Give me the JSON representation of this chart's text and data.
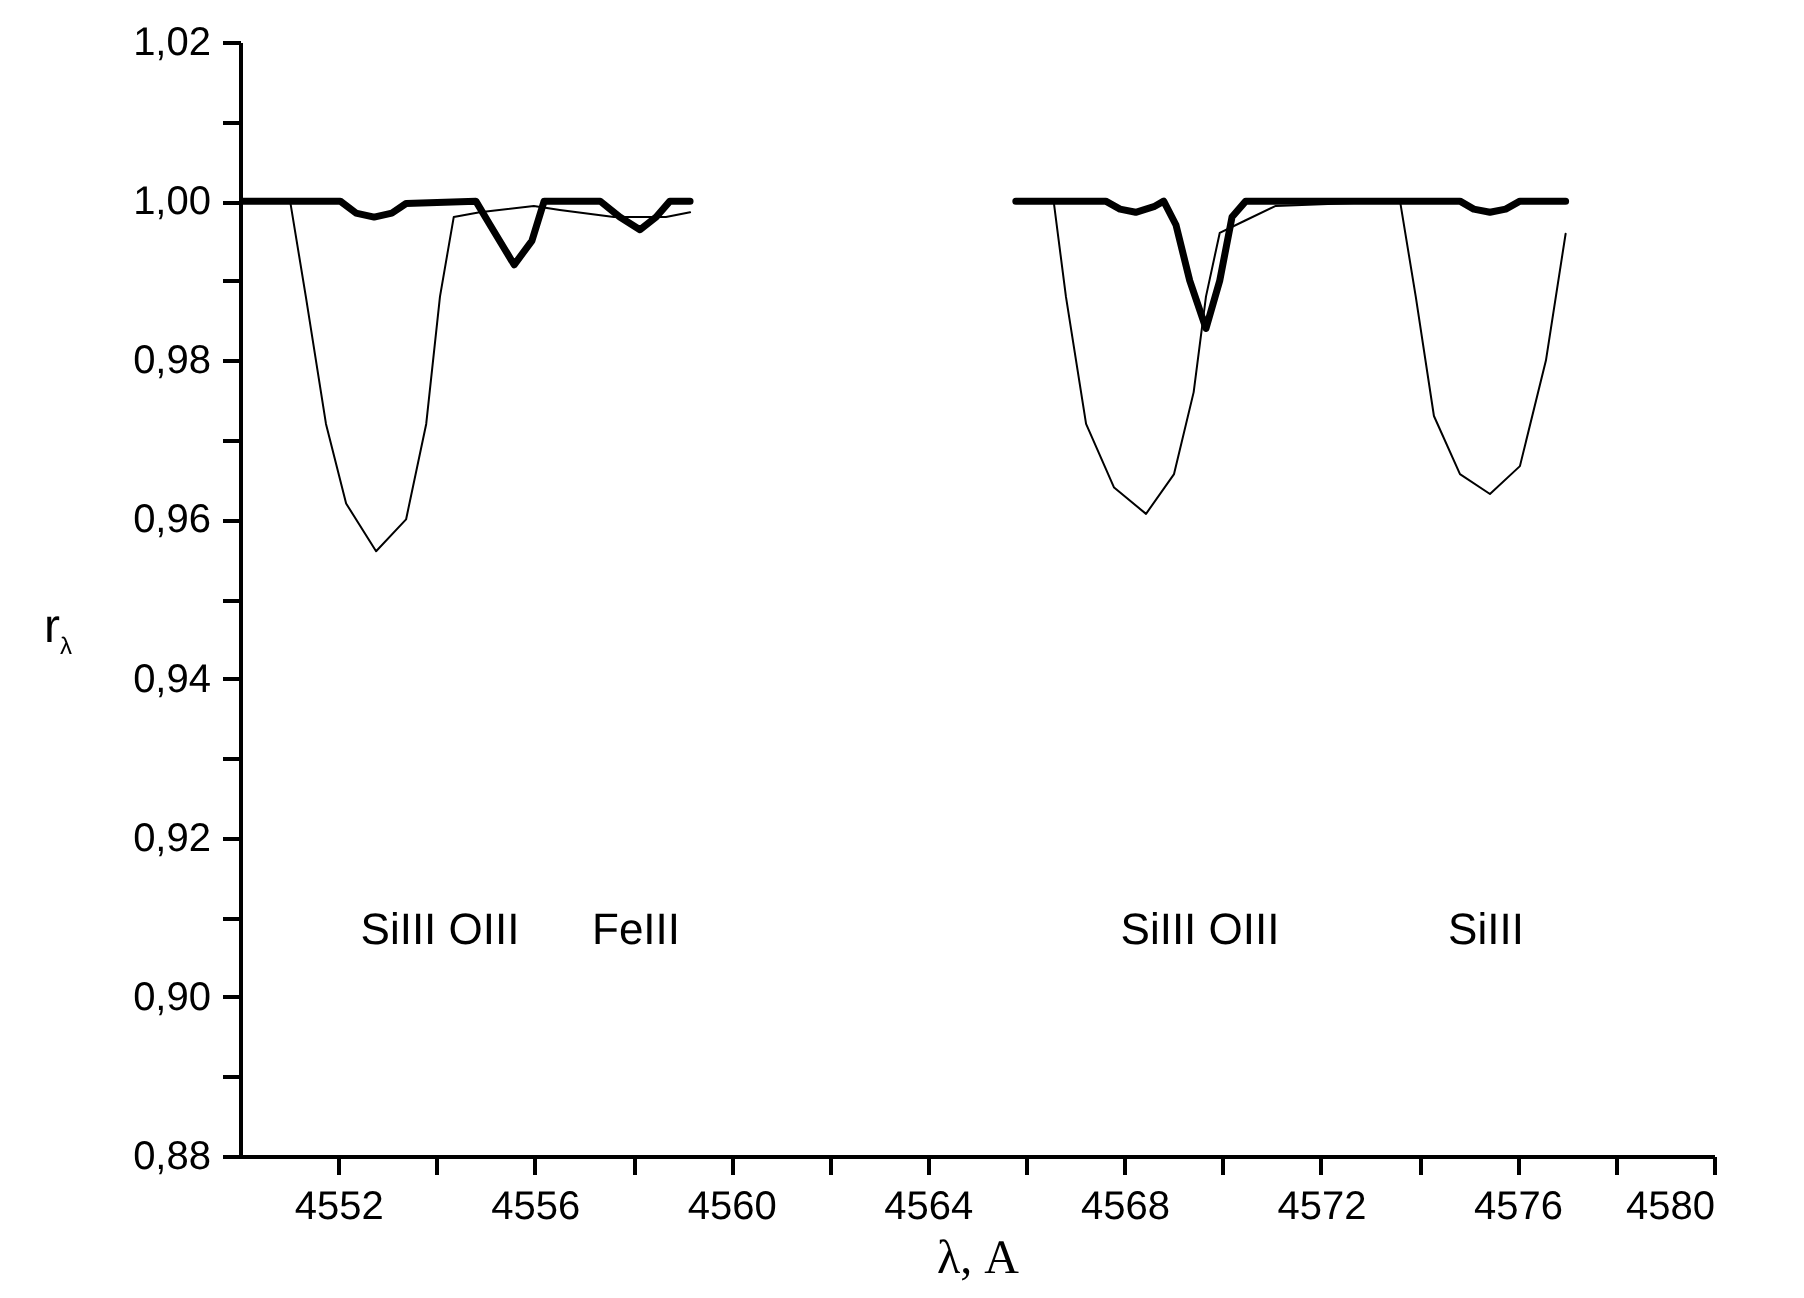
{
  "chart_data": {
    "type": "line",
    "xlabel": "λ, A",
    "ylabel": "r$_{λ}$",
    "xlim": [
      4550,
      4580
    ],
    "ylim": [
      0.88,
      1.02
    ],
    "xticks": [
      4552,
      {
        "value": 4554,
        "label": null
      },
      4556,
      {
        "value": 4558,
        "label": null
      },
      4560,
      {
        "value": 4562,
        "label": null
      },
      4564,
      {
        "value": 4566,
        "label": null
      },
      4568,
      {
        "value": 4570,
        "label": null
      },
      4572,
      {
        "value": 4574,
        "label": null
      },
      4576,
      {
        "value": 4578,
        "label": null
      },
      4580
    ],
    "yticks": [
      {
        "value": 0.88,
        "label": "0,88"
      },
      {
        "value": 0.89,
        "label": null
      },
      {
        "value": 0.9,
        "label": "0,90"
      },
      {
        "value": 0.91,
        "label": null
      },
      {
        "value": 0.92,
        "label": "0,92"
      },
      {
        "value": 0.93,
        "label": null
      },
      {
        "value": 0.94,
        "label": "0,94"
      },
      {
        "value": 0.95,
        "label": null
      },
      {
        "value": 0.96,
        "label": "0,96"
      },
      {
        "value": 0.97,
        "label": null
      },
      {
        "value": 0.98,
        "label": "0,98"
      },
      {
        "value": 0.99,
        "label": null
      },
      {
        "value": 1.0,
        "label": "1,00"
      },
      {
        "value": 1.01,
        "label": null
      },
      {
        "value": 1.02,
        "label": "1,02"
      }
    ],
    "grid": false,
    "marker": "none",
    "line_style": "solid",
    "series": [
      {
        "color": "#000000",
        "x": [
          4550.0,
          4551.02,
          4551.34,
          4551.75,
          4552.16,
          4552.77,
          4553.38,
          4553.79,
          4554.07,
          4554.35,
          4554.88,
          4555.98,
          4556.51,
          4557.61,
          4558.67,
          4559.16,
          4562,
          4565.79,
          4566.56,
          4566.81,
          4567.22,
          4567.79,
          4568.44,
          4569.01,
          4569.41,
          4569.66,
          4569.94,
          4570.47,
          4571.08,
          4573.61,
          4573.93,
          4574.3,
          4574.83,
          4575.44,
          4576.05,
          4576.58,
          4576.98
        ],
        "values": [
          1.0,
          1.0,
          0.988,
          0.972,
          0.962,
          0.956,
          0.96,
          0.972,
          0.988,
          0.998,
          0.9986,
          0.9994,
          0.9989,
          0.998,
          0.998,
          0.9986,
          null,
          1.0,
          1.0,
          0.988,
          0.972,
          0.964,
          0.9607,
          0.9657,
          0.976,
          0.988,
          0.996,
          0.9976,
          0.9994,
          1.0,
          0.988,
          0.973,
          0.9657,
          0.9632,
          0.9667,
          0.98,
          0.9959
        ]
      },
      {
        "color": "#000000",
        "x": [
          4550.0,
          4552.04,
          4552.36,
          4552.73,
          4553.09,
          4553.38,
          4554.8,
          4555.09,
          4555.58,
          4555.94,
          4556.19,
          4557.33,
          4557.73,
          4558.14,
          4558.47,
          4558.75,
          4559.16,
          4562,
          4565.79,
          4567.62,
          4567.91,
          4568.23,
          4568.6,
          4568.8,
          4569.05,
          4569.33,
          4569.66,
          4569.94,
          4570.19,
          4570.47,
          4574.83,
          4575.11,
          4575.44,
          4575.76,
          4576.05,
          4576.98
        ],
        "values": [
          1.0,
          1.0,
          0.9985,
          0.998,
          0.9985,
          0.9997,
          1.0,
          0.997,
          0.992,
          0.995,
          1.0,
          1.0,
          0.998,
          0.9964,
          0.998,
          1.0,
          1.0,
          null,
          1.0,
          1.0,
          0.999,
          0.9986,
          0.9993,
          1.0,
          0.997,
          0.99,
          0.984,
          0.99,
          0.998,
          1.0,
          1.0,
          0.999,
          0.9986,
          0.999,
          1.0,
          1.0
        ]
      }
    ],
    "annotations": [
      "SiIII OIII",
      "FeIII",
      "SiIII OIII",
      "SiIII"
    ]
  }
}
